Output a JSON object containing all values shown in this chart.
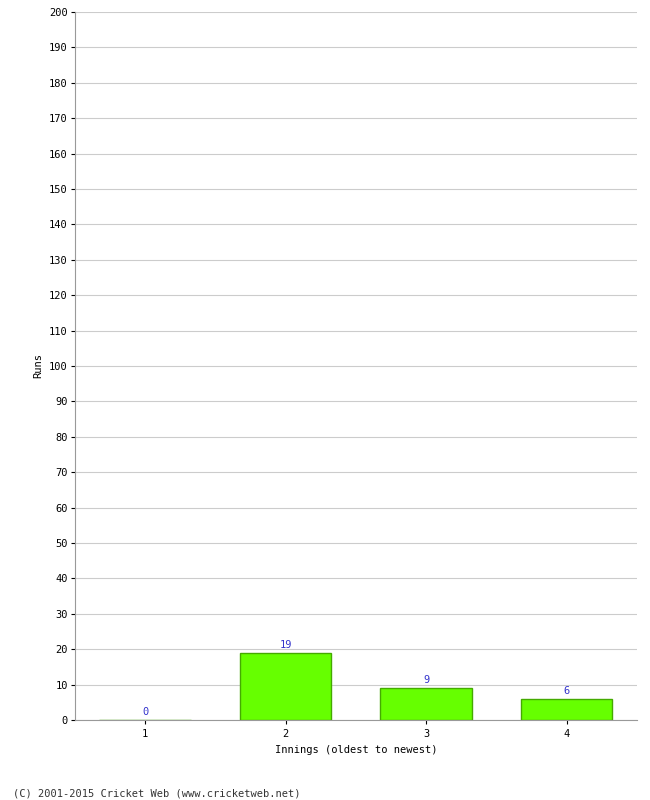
{
  "categories": [
    1,
    2,
    3,
    4
  ],
  "values": [
    0,
    19,
    9,
    6
  ],
  "bar_color": "#66ff00",
  "bar_edge_color": "#44aa00",
  "xlabel": "Innings (oldest to newest)",
  "ylabel": "Runs",
  "ylim": [
    0,
    200
  ],
  "yticks": [
    0,
    10,
    20,
    30,
    40,
    50,
    60,
    70,
    80,
    90,
    100,
    110,
    120,
    130,
    140,
    150,
    160,
    170,
    180,
    190,
    200
  ],
  "label_color": "#3333cc",
  "label_fontsize": 7.5,
  "tick_fontsize": 7.5,
  "axis_label_fontsize": 7.5,
  "footer": "(C) 2001-2015 Cricket Web (www.cricketweb.net)",
  "background_color": "#ffffff",
  "grid_color": "#cccccc",
  "spine_color": "#999999"
}
